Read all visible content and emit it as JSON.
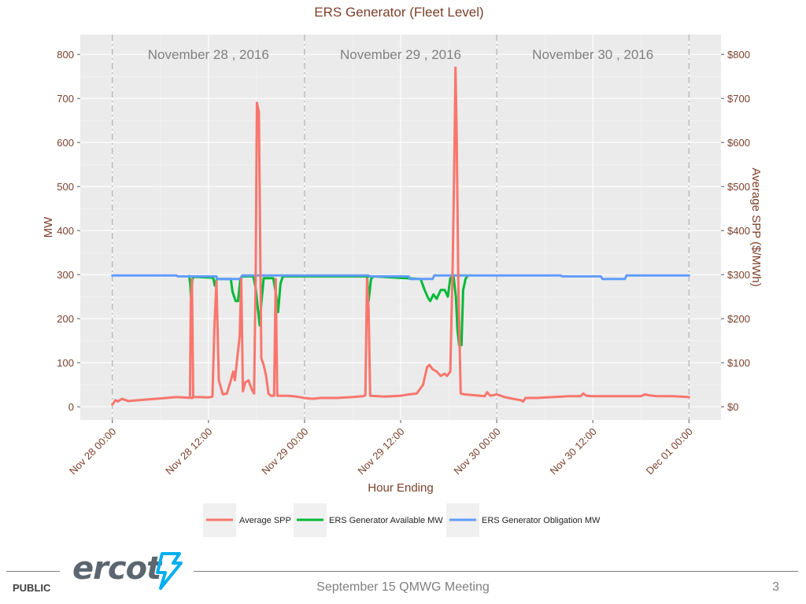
{
  "slide": {
    "footer_label": "PUBLIC",
    "meeting": "September 15 QMWG Meeting",
    "page_number": "3",
    "logo_text": "ercot",
    "logo_color": "#5b6670",
    "logo_accent": "#00aeef"
  },
  "chart_data": {
    "type": "line",
    "title": "ERS Generator (Fleet Level)",
    "xlabel": "Hour Ending",
    "ylabel_left": "MW",
    "ylabel_right": "Average SPP ($/MWh)",
    "xlim_hours": [
      -4,
      76
    ],
    "ylim": [
      -30,
      845
    ],
    "y_ticks_left": [
      {
        "v": 0,
        "label": "0"
      },
      {
        "v": 100,
        "label": "100"
      },
      {
        "v": 200,
        "label": "200"
      },
      {
        "v": 300,
        "label": "300"
      },
      {
        "v": 400,
        "label": "400"
      },
      {
        "v": 500,
        "label": "500"
      },
      {
        "v": 600,
        "label": "600"
      },
      {
        "v": 700,
        "label": "700"
      },
      {
        "v": 800,
        "label": "800"
      }
    ],
    "y_ticks_right": [
      {
        "v": 0,
        "label": "$0"
      },
      {
        "v": 100,
        "label": "$100"
      },
      {
        "v": 200,
        "label": "$200"
      },
      {
        "v": 300,
        "label": "$300"
      },
      {
        "v": 400,
        "label": "$400"
      },
      {
        "v": 500,
        "label": "$500"
      },
      {
        "v": 600,
        "label": "$600"
      },
      {
        "v": 700,
        "label": "$700"
      },
      {
        "v": 800,
        "label": "$800"
      }
    ],
    "x_ticks": [
      {
        "h": 0,
        "label": "Nov 28 00:00"
      },
      {
        "h": 12,
        "label": "Nov 28 12:00"
      },
      {
        "h": 24,
        "label": "Nov 29 00:00"
      },
      {
        "h": 36,
        "label": "Nov 29 12:00"
      },
      {
        "h": 48,
        "label": "Nov 30 00:00"
      },
      {
        "h": 60,
        "label": "Nov 30 12:00"
      },
      {
        "h": 72,
        "label": "Dec 01 00:00"
      }
    ],
    "day_dividers": [
      0,
      24,
      48,
      72
    ],
    "day_labels": [
      {
        "h": 12,
        "label": "November 28 , 2016"
      },
      {
        "h": 36,
        "label": "November 29 , 2016"
      },
      {
        "h": 60,
        "label": "November 30 , 2016"
      }
    ],
    "grid": true,
    "legend_position": "bottom",
    "series": [
      {
        "name": "Average SPP",
        "color": "#f8766d",
        "points": [
          [
            0,
            5
          ],
          [
            0.4,
            15
          ],
          [
            0.7,
            12
          ],
          [
            1.2,
            18
          ],
          [
            2,
            13
          ],
          [
            4,
            16
          ],
          [
            6,
            19
          ],
          [
            8,
            22
          ],
          [
            10,
            20
          ],
          [
            9.5,
            21
          ],
          [
            9.7,
            22
          ],
          [
            9.8,
            240
          ],
          [
            9.95,
            290
          ],
          [
            10.1,
            22
          ],
          [
            11,
            22
          ],
          [
            12,
            21
          ],
          [
            12.5,
            23
          ],
          [
            12.75,
            180
          ],
          [
            13,
            285
          ],
          [
            13.3,
            60
          ],
          [
            13.8,
            28
          ],
          [
            14.3,
            30
          ],
          [
            14.8,
            60
          ],
          [
            15.1,
            80
          ],
          [
            15.3,
            60
          ],
          [
            15.6,
            110
          ],
          [
            15.9,
            160
          ],
          [
            16.1,
            290
          ],
          [
            16.3,
            35
          ],
          [
            16.6,
            55
          ],
          [
            17.0,
            60
          ],
          [
            17.4,
            40
          ],
          [
            17.7,
            30
          ],
          [
            17.9,
            290
          ],
          [
            18.05,
            690
          ],
          [
            18.3,
            670
          ],
          [
            18.6,
            110
          ],
          [
            18.9,
            95
          ],
          [
            19.2,
            70
          ],
          [
            19.5,
            30
          ],
          [
            19.8,
            25
          ],
          [
            20.2,
            25
          ],
          [
            20.4,
            290
          ],
          [
            20.6,
            25
          ],
          [
            21,
            25
          ],
          [
            22,
            25
          ],
          [
            23,
            23
          ],
          [
            24,
            20
          ],
          [
            25,
            18
          ],
          [
            26,
            20
          ],
          [
            28,
            20
          ],
          [
            30,
            22
          ],
          [
            31.3,
            24
          ],
          [
            31.6,
            26
          ],
          [
            31.8,
            290
          ],
          [
            32.0,
            220
          ],
          [
            32.2,
            25
          ],
          [
            34,
            23
          ],
          [
            36,
            25
          ],
          [
            37,
            28
          ],
          [
            38,
            30
          ],
          [
            38.8,
            50
          ],
          [
            39.3,
            90
          ],
          [
            39.6,
            95
          ],
          [
            40,
            85
          ],
          [
            40.5,
            80
          ],
          [
            41,
            70
          ],
          [
            41.5,
            75
          ],
          [
            41.8,
            70
          ],
          [
            42.2,
            80
          ],
          [
            42.5,
            320
          ],
          [
            42.7,
            560
          ],
          [
            42.85,
            770
          ],
          [
            43.0,
            620
          ],
          [
            43.2,
            280
          ],
          [
            43.5,
            30
          ],
          [
            44,
            28
          ],
          [
            46,
            25
          ],
          [
            46.5,
            24
          ],
          [
            46.8,
            33
          ],
          [
            47.2,
            25
          ],
          [
            48,
            28
          ],
          [
            49,
            22
          ],
          [
            50,
            18
          ],
          [
            51,
            15
          ],
          [
            51.3,
            12
          ],
          [
            51.6,
            20
          ],
          [
            53,
            20
          ],
          [
            55,
            22
          ],
          [
            57,
            24
          ],
          [
            58.5,
            24
          ],
          [
            58.8,
            30
          ],
          [
            59.2,
            25
          ],
          [
            60,
            24
          ],
          [
            62,
            24
          ],
          [
            64,
            24
          ],
          [
            66,
            24
          ],
          [
            66.5,
            28
          ],
          [
            67,
            26
          ],
          [
            68,
            24
          ],
          [
            70,
            24
          ],
          [
            72,
            22
          ]
        ]
      },
      {
        "name": "ERS Generator Available MW",
        "color": "#00ba38",
        "points": [
          [
            9.6,
            297
          ],
          [
            9.75,
            275
          ],
          [
            9.85,
            235
          ],
          [
            10.0,
            290
          ],
          [
            10.2,
            295
          ],
          [
            12.6,
            293
          ],
          [
            12.8,
            275
          ],
          [
            13.05,
            290
          ],
          [
            13.4,
            290
          ],
          [
            14.8,
            290
          ],
          [
            15.0,
            262
          ],
          [
            15.4,
            240
          ],
          [
            15.7,
            240
          ],
          [
            16.0,
            292
          ],
          [
            16.3,
            296
          ],
          [
            17.6,
            296
          ],
          [
            17.9,
            270
          ],
          [
            18.1,
            235
          ],
          [
            18.4,
            185
          ],
          [
            18.6,
            235
          ],
          [
            18.9,
            292
          ],
          [
            20.1,
            292
          ],
          [
            20.4,
            260
          ],
          [
            20.7,
            215
          ],
          [
            21.0,
            280
          ],
          [
            21.3,
            296
          ],
          [
            32.2,
            296
          ],
          [
            31.8,
            298
          ],
          [
            32.0,
            240
          ],
          [
            32.3,
            290
          ],
          [
            32.6,
            296
          ],
          [
            38.5,
            290
          ],
          [
            39.0,
            265
          ],
          [
            39.4,
            248
          ],
          [
            39.7,
            240
          ],
          [
            40.1,
            255
          ],
          [
            40.5,
            245
          ],
          [
            41,
            265
          ],
          [
            41.5,
            265
          ],
          [
            41.9,
            250
          ],
          [
            42.2,
            292
          ],
          [
            42.6,
            296
          ],
          [
            42.9,
            250
          ],
          [
            43.1,
            175
          ],
          [
            43.3,
            140
          ],
          [
            43.6,
            140
          ],
          [
            43.8,
            265
          ],
          [
            44.1,
            290
          ],
          [
            44.3,
            296
          ]
        ]
      },
      {
        "name": "ERS Generator Obligation MW",
        "color": "#619cff",
        "points": [
          [
            0,
            298
          ],
          [
            8,
            298
          ],
          [
            8.2,
            296
          ],
          [
            13,
            296
          ],
          [
            13.1,
            290
          ],
          [
            16,
            290
          ],
          [
            16.2,
            298
          ],
          [
            32,
            298
          ],
          [
            32.2,
            296
          ],
          [
            37,
            296
          ],
          [
            37.2,
            290
          ],
          [
            40,
            290
          ],
          [
            40.2,
            298
          ],
          [
            56,
            298
          ],
          [
            56.2,
            296
          ],
          [
            61,
            296
          ],
          [
            61.2,
            290
          ],
          [
            64,
            290
          ],
          [
            64.2,
            298
          ],
          [
            72,
            298
          ]
        ]
      }
    ]
  }
}
